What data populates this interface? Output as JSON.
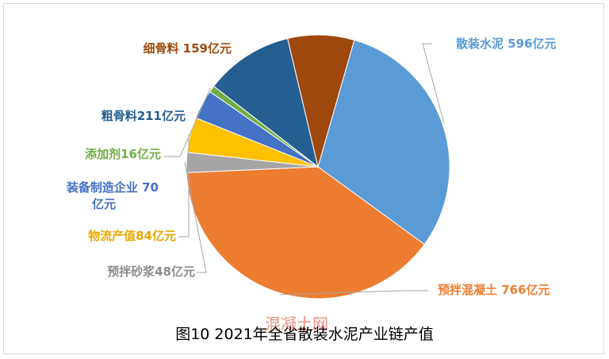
{
  "figure_caption": "图10    2021年全省散装水泥产业链产值",
  "watermark": "混凝土网",
  "chart_data": {
    "type": "pie",
    "title": "",
    "unit": "亿元",
    "slices": [
      {
        "name": "散装水泥",
        "value": 596,
        "label": "散装水泥 596亿元",
        "color": "#5b9bd5"
      },
      {
        "name": "预拌混凝土",
        "value": 766,
        "label": "预拌混凝土 766亿元",
        "color": "#ed7d31"
      },
      {
        "name": "预拌砂浆",
        "value": 48,
        "label": "预拌砂浆48亿元",
        "color": "#a5a5a5"
      },
      {
        "name": "物流产值",
        "value": 84,
        "label": "物流产值84亿元",
        "color": "#ffc000"
      },
      {
        "name": "装备制造企业",
        "value": 70,
        "label": "装备制造企业 70亿元",
        "color": "#4472c4"
      },
      {
        "name": "添加剂",
        "value": 16,
        "label": "添加剂16亿元",
        "color": "#70ad47"
      },
      {
        "name": "粗骨料",
        "value": 211,
        "label": "粗骨料211亿元",
        "color": "#255e91"
      },
      {
        "name": "细骨料",
        "value": 159,
        "label": "细骨料 159亿元",
        "color": "#9e480e"
      }
    ]
  }
}
